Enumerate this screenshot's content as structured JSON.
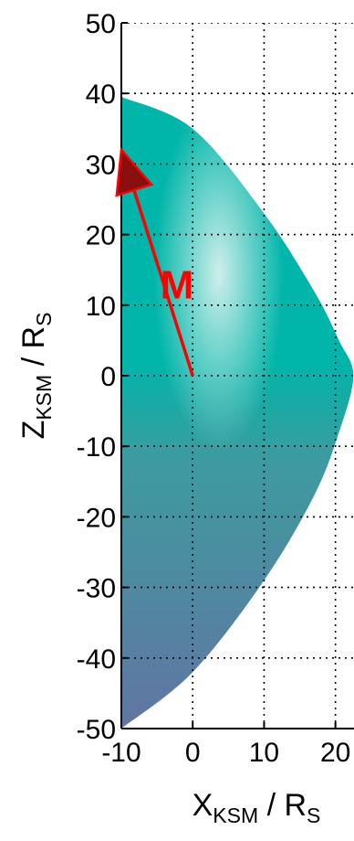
{
  "chart_data": {
    "type": "area",
    "title": "",
    "xlim": [
      -10,
      22.6
    ],
    "ylim": [
      -50,
      50
    ],
    "x_ticks": [
      -10,
      0,
      10,
      20
    ],
    "y_ticks": [
      50,
      40,
      30,
      20,
      10,
      0,
      -10,
      -20,
      -30,
      -40,
      -50
    ],
    "grid": true,
    "xlabel": {
      "main": "X",
      "sub": "KSM",
      "sep": " / R",
      "unit_sub": "S"
    },
    "ylabel": {
      "main": "Z",
      "sub": "KSM",
      "sep": " / R",
      "unit_sub": "S"
    },
    "series": [
      {
        "boundary": [
          [
            -10,
            39.5
          ],
          [
            0,
            35
          ],
          [
            10,
            23
          ],
          [
            17,
            12
          ],
          [
            20.5,
            5
          ],
          [
            22.5,
            0
          ],
          [
            20.5,
            -8
          ],
          [
            17,
            -17
          ],
          [
            10,
            -29
          ],
          [
            0,
            -42
          ],
          [
            -10,
            -50
          ]
        ]
      }
    ],
    "annotations": [
      {
        "kind": "vector",
        "label": "M",
        "from": [
          0,
          0
        ],
        "to": [
          -10,
          32
        ],
        "color": "#ff0000",
        "label_at": [
          -2.2,
          13
        ]
      }
    ],
    "colors": {
      "fill_top": "#00b5a9",
      "fill_highlight": "#d8f2ee",
      "fill_mid": "#3e9aa0",
      "fill_bottom": "#6275a2",
      "vector": "#ff0000",
      "arrowhead": "#8a0e0e",
      "grid": "#000000"
    }
  }
}
